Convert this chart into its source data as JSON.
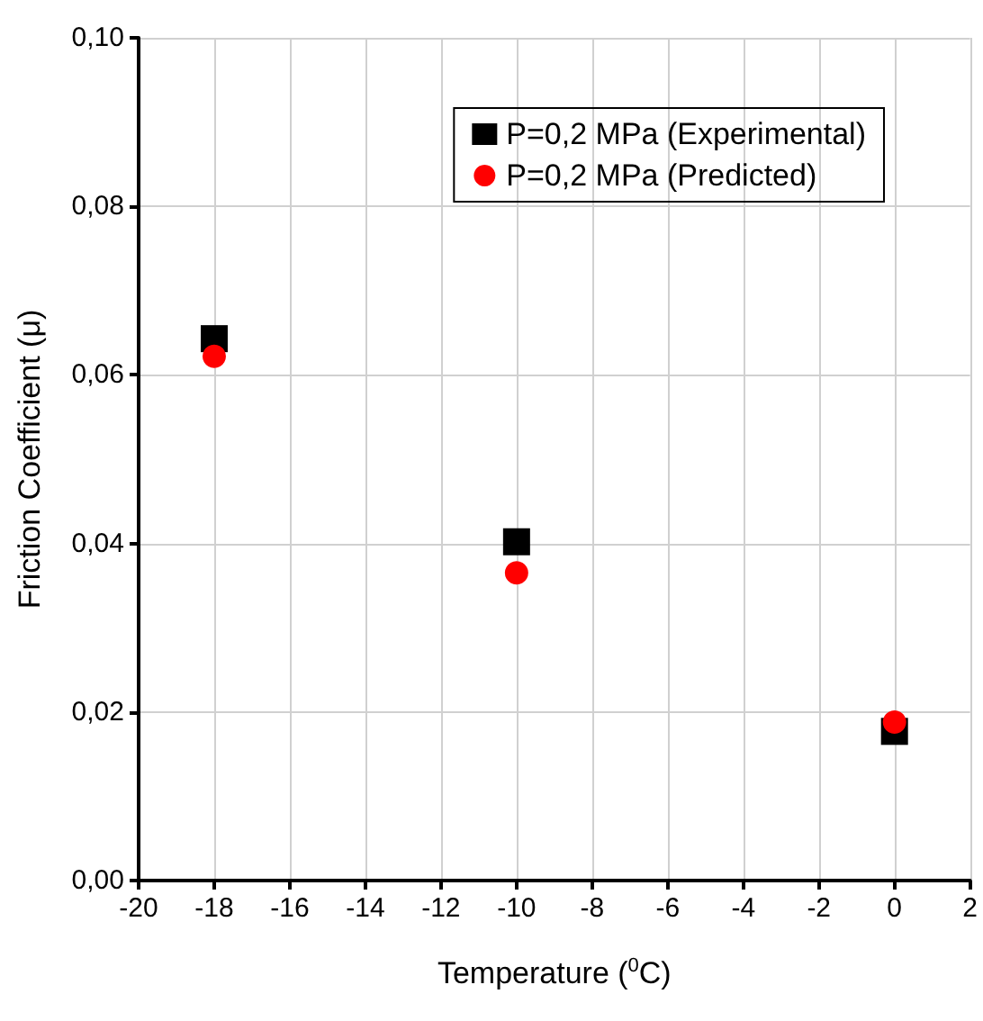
{
  "chart_data": {
    "type": "scatter",
    "xlabel": "Temperature ($^{0}$C)",
    "ylabel": "Friction Coefficient (μ)",
    "x": [
      -18,
      -10,
      0
    ],
    "series": [
      {
        "name": "P=0,2 MPa (Experimental)",
        "color": "#000000",
        "marker": "square",
        "values": [
          0.0643,
          0.0402,
          0.0177
        ]
      },
      {
        "name": "P=0,2 MPa (Predicted)",
        "color": "#ff0000",
        "marker": "circle",
        "values": [
          0.0622,
          0.0365,
          0.0188
        ]
      }
    ],
    "xlim": [
      -20,
      2
    ],
    "xticks": [
      -20,
      -18,
      -16,
      -14,
      -12,
      -10,
      -8,
      -6,
      -4,
      -2,
      0,
      2
    ],
    "ylim": [
      0,
      0.1
    ],
    "yticks": [
      {
        "value": 0,
        "label": "0,00"
      },
      {
        "value": 0.02,
        "label": "0,02"
      },
      {
        "value": 0.04,
        "label": "0,04"
      },
      {
        "value": 0.06,
        "label": "0,06"
      },
      {
        "value": 0.08,
        "label": "0,08"
      },
      {
        "value": 0.1,
        "label": "0,10"
      }
    ],
    "grid": true,
    "legend": "top right"
  }
}
